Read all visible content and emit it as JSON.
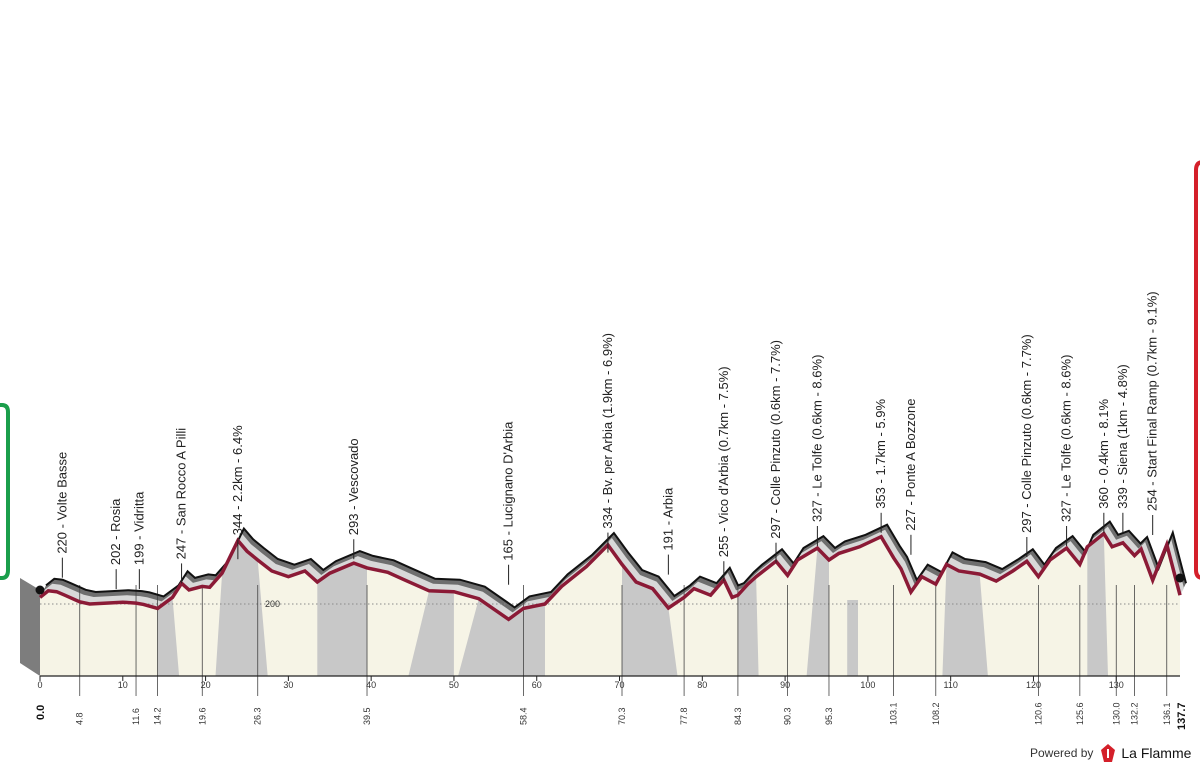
{
  "chart_data": {
    "type": "area",
    "title": "",
    "xlabel": "",
    "ylabel": "",
    "xlim": [
      0,
      137.7
    ],
    "reference_altitude": "200",
    "x_ticks": [
      0,
      10,
      20,
      30,
      40,
      50,
      60,
      70,
      80,
      90,
      100,
      110,
      120,
      130
    ],
    "start_km": "0.0",
    "finish_km": "137.7",
    "km_markers": [
      "4.8",
      "11.6",
      "14.2",
      "19.6",
      "26.3",
      "39.5",
      "58.4",
      "70.3",
      "77.8",
      "84.3",
      "90.3",
      "95.3",
      "103.1",
      "108.2",
      "120.6",
      "125.6",
      "130.0",
      "132.2",
      "136.1"
    ],
    "waypoints": [
      {
        "km": 2.7,
        "label": "220 - Volte Basse"
      },
      {
        "km": 9.2,
        "label": "202 - Rosia"
      },
      {
        "km": 12.0,
        "label": "199 - Vidritta"
      },
      {
        "km": 17.1,
        "label": "247 - San Rocco A Pilli"
      },
      {
        "km": 23.9,
        "label": "344 - 2.2km - 6.4%"
      },
      {
        "km": 37.9,
        "label": "293 - Vescovado"
      },
      {
        "km": 56.6,
        "label": "165 - Lucignano D'Arbia"
      },
      {
        "km": 68.6,
        "label": "334 - Bv. per Arbia (1.9km - 6.9%)"
      },
      {
        "km": 75.9,
        "label": "191 - Arbia"
      },
      {
        "km": 82.6,
        "label": "255 - Vico d'Arbia (0.7km - 7.5%)"
      },
      {
        "km": 88.9,
        "label": "297 - Colle Pinzuto (0.6km - 7.7%)"
      },
      {
        "km": 93.9,
        "label": "327 - Le Tolfe (0.6km - 8.6%)"
      },
      {
        "km": 101.6,
        "label": "353 - 1.7km - 5.9%"
      },
      {
        "km": 105.2,
        "label": "227 - Ponte A Bozzone"
      },
      {
        "km": 119.2,
        "label": "297 - Colle Pinzuto (0.6km - 7.7%)"
      },
      {
        "km": 124.0,
        "label": "327 - Le Tolfe (0.6km - 8.6%)"
      },
      {
        "km": 128.5,
        "label": "360 - 0.4km - 8.1%"
      },
      {
        "km": 130.8,
        "label": "339 - Siena (1km - 4.8%)"
      },
      {
        "km": 134.4,
        "label": "254 - Start Final Ramp (0.7km - 9.1%)"
      }
    ],
    "profile_km": [
      0,
      1,
      2,
      3,
      4.8,
      6,
      8,
      10,
      11.6,
      12.5,
      14.2,
      16,
      17.1,
      18,
      19.6,
      20.5,
      22,
      23.9,
      25,
      26.3,
      28,
      30,
      32,
      33.5,
      35,
      37.9,
      39.5,
      42,
      44,
      47,
      50,
      53,
      56.6,
      58.4,
      61,
      63,
      66,
      68.6,
      70.3,
      72,
      74,
      75.9,
      77.8,
      79,
      81,
      82.6,
      83.6,
      84.3,
      85.5,
      86.5,
      88.9,
      90.3,
      91.5,
      93.9,
      95.3,
      96.5,
      99,
      101.6,
      103.1,
      104,
      105.2,
      106.5,
      108.2,
      109.5,
      111,
      113.5,
      115.5,
      117.5,
      119.2,
      120.6,
      122,
      124,
      125.6,
      126.5,
      128.5,
      129.5,
      130.8,
      132.2,
      133,
      134.4,
      136.1,
      137.7
    ],
    "profile_alt": [
      215,
      230,
      228,
      220,
      205,
      200,
      202,
      204,
      202,
      199,
      190,
      215,
      247,
      232,
      240,
      238,
      270,
      344,
      320,
      300,
      275,
      262,
      275,
      250,
      270,
      293,
      282,
      272,
      255,
      230,
      228,
      212,
      165,
      190,
      200,
      240,
      285,
      334,
      290,
      250,
      235,
      191,
      215,
      235,
      220,
      255,
      215,
      220,
      245,
      262,
      297,
      265,
      300,
      327,
      300,
      315,
      330,
      353,
      305,
      280,
      227,
      262,
      245,
      290,
      275,
      268,
      252,
      275,
      297,
      262,
      300,
      327,
      290,
      330,
      360,
      330,
      339,
      310,
      325,
      254,
      335,
      220
    ]
  },
  "footer": {
    "powered_by": "Powered by",
    "brand": "La Flamme",
    "logo_icon": "flame-logo-icon"
  },
  "colors": {
    "start_marker": "#1a9e4b",
    "finish_marker": "#d4202a",
    "road_line": "#8b1a36",
    "field_fill": "#f6f4e6",
    "gravel_fill": "#c8c8c8"
  }
}
